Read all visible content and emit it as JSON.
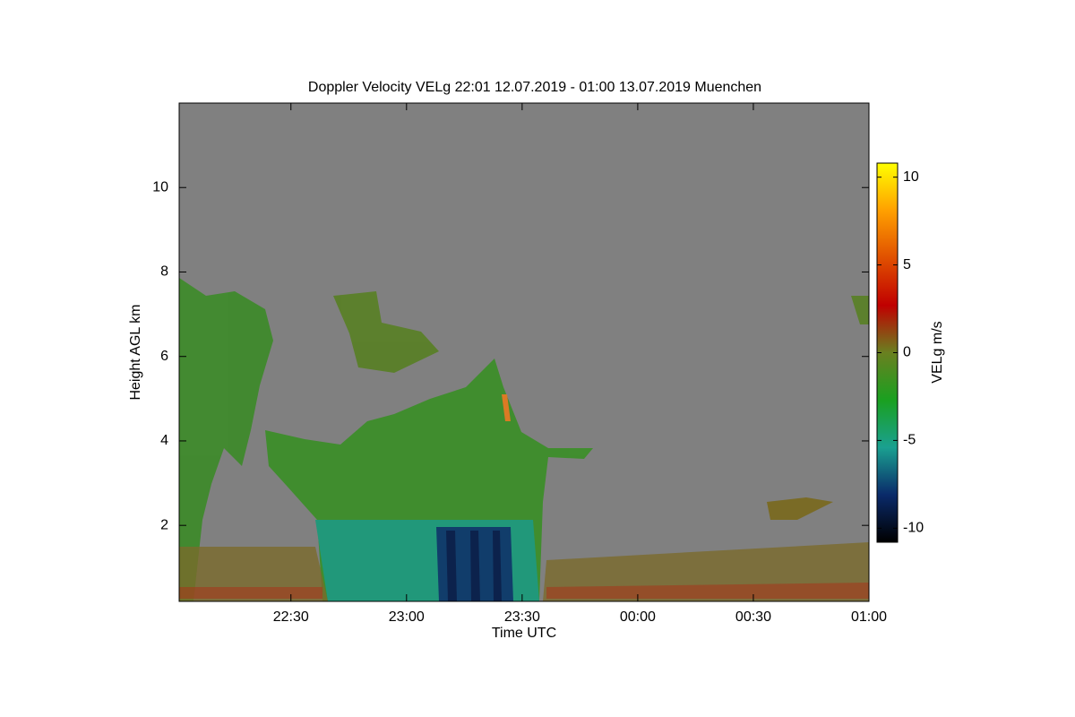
{
  "chart_data": {
    "type": "heatmap",
    "title": "Doppler Velocity VELg   22:01 12.07.2019 - 01:00 13.07.2019 Muenchen",
    "xlabel": "Time UTC",
    "ylabel": "Height AGL km",
    "xlim": [
      "2019-07-12T22:01",
      "2019-07-13T01:00"
    ],
    "xticks": [
      {
        "value": "2019-07-12T22:30",
        "label": "22:30"
      },
      {
        "value": "2019-07-12T23:00",
        "label": "23:00"
      },
      {
        "value": "2019-07-12T23:30",
        "label": "23:30"
      },
      {
        "value": "2019-07-13T00:00",
        "label": "00:00"
      },
      {
        "value": "2019-07-13T00:30",
        "label": "00:30"
      },
      {
        "value": "2019-07-13T01:00",
        "label": "01:00"
      }
    ],
    "ylim": [
      0.2,
      12
    ],
    "yticks": [
      2,
      4,
      6,
      8,
      10
    ],
    "colorbar_label": "VELg m/s",
    "zlim": [
      -10.8,
      10.8
    ],
    "zticks": [
      -10,
      -5,
      0,
      5,
      10
    ],
    "colormap": [
      "#000000",
      "#0a2a6a",
      "#1aa090",
      "#1aa020",
      "#6a8020",
      "#c00000",
      "#e05000",
      "#ffa000",
      "#ffff00"
    ],
    "background": "#808080"
  }
}
